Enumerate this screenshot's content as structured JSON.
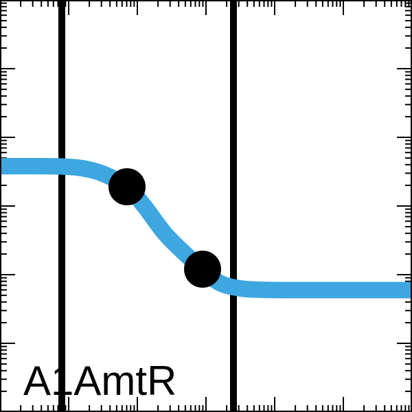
{
  "chart_data": {
    "type": "line",
    "title": "",
    "panel_label": "A1AmtR",
    "xlabel": "",
    "ylabel": "",
    "x_scale": "log",
    "y_scale": "log",
    "xlim": [
      0,
      6
    ],
    "ylim": [
      0,
      6
    ],
    "grid": false,
    "legend": "none",
    "vertical_lines": [
      0.9,
      3.4
    ],
    "series": [
      {
        "name": "",
        "color": "#3ea7e0",
        "x": [
          0.0,
          0.5,
          0.9,
          1.2,
          1.5,
          1.85,
          2.1,
          2.4,
          2.7,
          2.95,
          3.2,
          3.5,
          3.8,
          4.2,
          4.6,
          5.0,
          5.5,
          6.0
        ],
        "y": [
          3.58,
          3.58,
          3.575,
          3.55,
          3.47,
          3.28,
          3.0,
          2.6,
          2.3,
          2.08,
          1.88,
          1.8,
          1.78,
          1.775,
          1.775,
          1.775,
          1.775,
          1.775
        ]
      }
    ],
    "points": {
      "color": "#000000",
      "x": [
        1.85,
        2.95
      ],
      "y": [
        3.28,
        2.08
      ]
    }
  }
}
